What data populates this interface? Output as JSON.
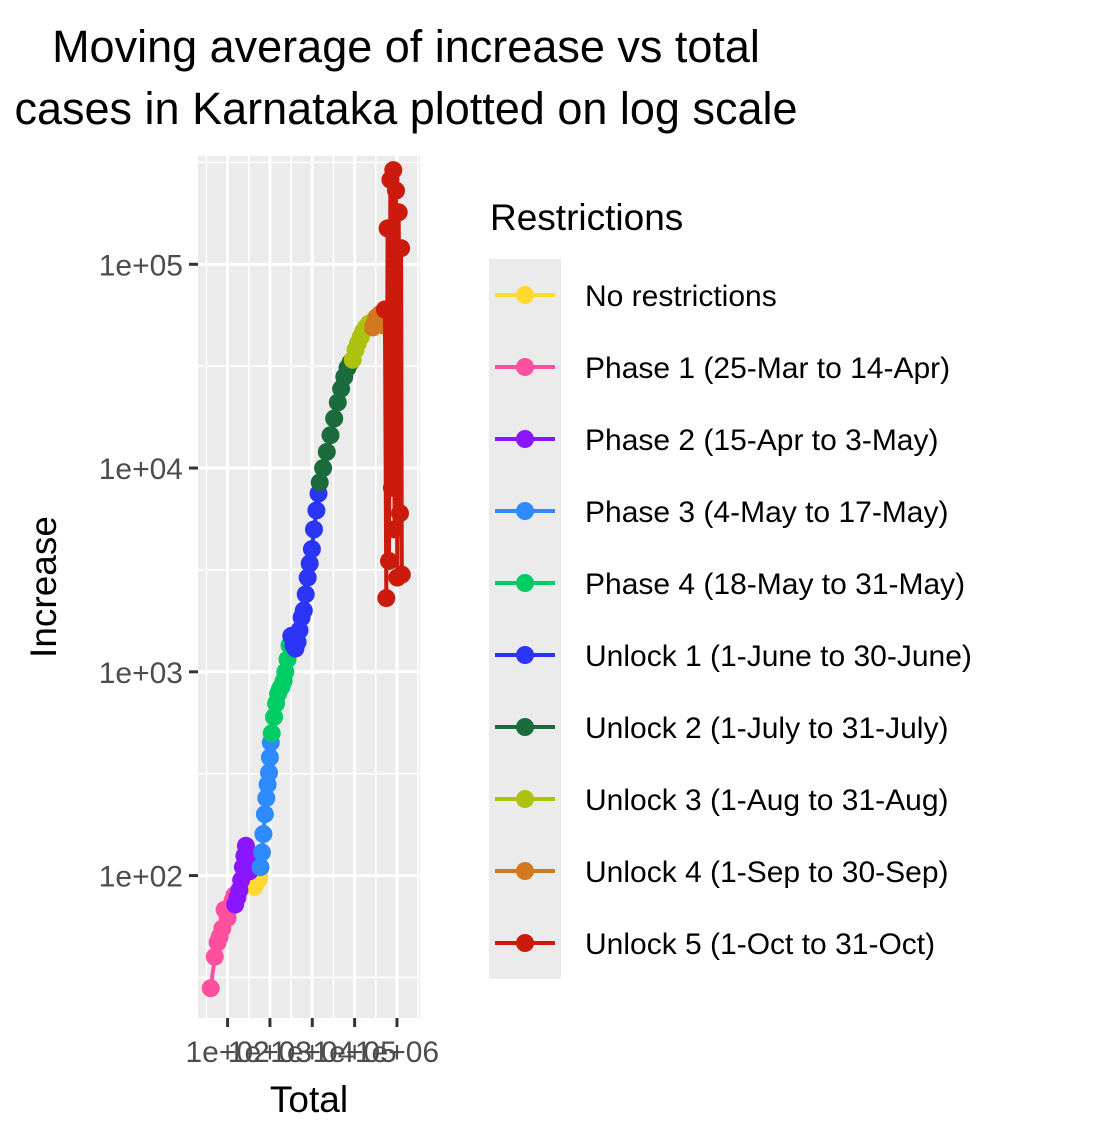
{
  "chart_data": {
    "type": "line",
    "title_lines": [
      "Moving average of increase vs total",
      "cases in Karnataka plotted on log scale"
    ],
    "xlabel": "Total",
    "ylabel": "Increase",
    "x_scale": "log10",
    "y_scale": "log10",
    "xlim": [
      20,
      3500000
    ],
    "ylim": [
      20,
      340000
    ],
    "x_ticks": [
      {
        "value": 100,
        "label": "1e+02"
      },
      {
        "value": 1000,
        "label": "1e+03"
      },
      {
        "value": 10000,
        "label": "1e+04"
      },
      {
        "value": 100000,
        "label": "1e+05"
      },
      {
        "value": 1000000,
        "label": "1e+06"
      }
    ],
    "y_ticks": [
      {
        "value": 100,
        "label": "1e+02"
      },
      {
        "value": 1000,
        "label": "1e+03"
      },
      {
        "value": 10000,
        "label": "1e+04"
      },
      {
        "value": 100000,
        "label": "1e+05"
      }
    ],
    "grid": true,
    "legend": {
      "title": "Restrictions",
      "position": "right"
    },
    "series": [
      {
        "name": "No restrictions",
        "color": "#FFD92F",
        "points": [
          [
            330,
            90
          ],
          [
            370,
            110
          ],
          [
            400,
            120
          ],
          [
            430,
            88
          ],
          [
            450,
            92
          ],
          [
            470,
            98
          ],
          [
            500,
            105
          ],
          [
            530,
            95
          ],
          [
            560,
            100
          ],
          [
            590,
            108
          ]
        ]
      },
      {
        "name": "Phase 1 (25-Mar to 14-Apr)",
        "color": "#FF4F9F",
        "points": [
          [
            40,
            28
          ],
          [
            50,
            40
          ],
          [
            58,
            47
          ],
          [
            65,
            50
          ],
          [
            75,
            55
          ],
          [
            85,
            68
          ],
          [
            100,
            62
          ],
          [
            115,
            70
          ],
          [
            130,
            75
          ],
          [
            145,
            80
          ]
        ]
      },
      {
        "name": "Phase 2 (15-Apr to 3-May)",
        "color": "#8A16FF",
        "points": [
          [
            150,
            72
          ],
          [
            170,
            78
          ],
          [
            190,
            85
          ],
          [
            210,
            95
          ],
          [
            230,
            110
          ],
          [
            250,
            125
          ],
          [
            270,
            140
          ],
          [
            290,
            130
          ],
          [
            310,
            118
          ],
          [
            330,
            105
          ]
        ]
      },
      {
        "name": "Phase 3 (4-May to 17-May)",
        "color": "#2E8BFF",
        "points": [
          [
            600,
            110
          ],
          [
            650,
            130
          ],
          [
            700,
            160
          ],
          [
            760,
            200
          ],
          [
            820,
            240
          ],
          [
            880,
            280
          ],
          [
            950,
            320
          ],
          [
            1000,
            380
          ],
          [
            1050,
            450
          ]
        ]
      },
      {
        "name": "Phase 4 (18-May to 31-May)",
        "color": "#00CC66",
        "points": [
          [
            1100,
            500
          ],
          [
            1250,
            600
          ],
          [
            1400,
            700
          ],
          [
            1550,
            780
          ],
          [
            1700,
            820
          ],
          [
            1900,
            850
          ],
          [
            2100,
            900
          ],
          [
            2300,
            1000
          ],
          [
            2600,
            1150
          ],
          [
            2900,
            1350
          ]
        ]
      },
      {
        "name": "Unlock 1 (1-June to 30-June)",
        "color": "#2B35F5",
        "points": [
          [
            3200,
            1500
          ],
          [
            3600,
            1350
          ],
          [
            4000,
            1300
          ],
          [
            4500,
            1400
          ],
          [
            5000,
            1600
          ],
          [
            5600,
            1850
          ],
          [
            6300,
            2000
          ],
          [
            7000,
            2400
          ],
          [
            7800,
            2900
          ],
          [
            8700,
            3400
          ],
          [
            9800,
            4000
          ],
          [
            11000,
            5000
          ],
          [
            12500,
            6200
          ],
          [
            14000,
            7500
          ]
        ]
      },
      {
        "name": "Unlock 2 (1-July to 31-July)",
        "color": "#1B6B3D",
        "points": [
          [
            15000,
            8500
          ],
          [
            18000,
            10000
          ],
          [
            22000,
            12000
          ],
          [
            27000,
            14500
          ],
          [
            33000,
            17500
          ],
          [
            40000,
            21000
          ],
          [
            48000,
            24500
          ],
          [
            57000,
            28000
          ],
          [
            68000,
            31000
          ],
          [
            80000,
            33000
          ]
        ]
      },
      {
        "name": "Unlock 3 (1-Aug to 31-Aug)",
        "color": "#ADC20E",
        "points": [
          [
            90000,
            34000
          ],
          [
            105000,
            38000
          ],
          [
            120000,
            41000
          ],
          [
            140000,
            44000
          ],
          [
            160000,
            47000
          ],
          [
            185000,
            49000
          ],
          [
            215000,
            51000
          ],
          [
            250000,
            52000
          ]
        ]
      },
      {
        "name": "Unlock 4 (1-Sep to 30-Sep)",
        "color": "#D2781E",
        "points": [
          [
            270000,
            49000
          ],
          [
            300000,
            52000
          ],
          [
            330000,
            55000
          ],
          [
            360000,
            54000
          ],
          [
            400000,
            57000
          ],
          [
            430000,
            52000
          ],
          [
            460000,
            55000
          ],
          [
            500000,
            50000
          ]
        ]
      },
      {
        "name": "Unlock 5 (1-Oct to 31-Oct)",
        "color": "#CC1A0C",
        "points": [
          [
            520000,
            60000
          ],
          [
            560000,
            2300
          ],
          [
            600000,
            150000
          ],
          [
            650000,
            3500
          ],
          [
            700000,
            260000
          ],
          [
            760000,
            8000
          ],
          [
            820000,
            290000
          ],
          [
            880000,
            5000
          ],
          [
            950000,
            230000
          ],
          [
            1020000,
            2900
          ],
          [
            1100000,
            180000
          ],
          [
            1180000,
            6000
          ],
          [
            1250000,
            120000
          ],
          [
            1300000,
            3000
          ]
        ]
      }
    ]
  }
}
